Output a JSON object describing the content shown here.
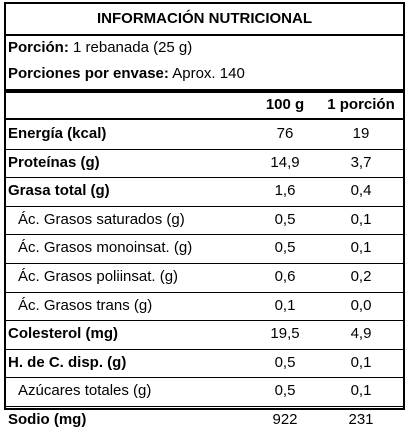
{
  "title": "INFORMACIÓN NUTRICIONAL",
  "serving": {
    "portion_label": "Porción:",
    "portion_value": "1 rebanada (25 g)",
    "per_package_label": "Porciones por envase:",
    "per_package_value": "Aprox. 140"
  },
  "columns": {
    "per_100g": "100 g",
    "per_portion": "1 porción"
  },
  "rows": [
    {
      "name": "Energía (kcal)",
      "per_100g": "76",
      "per_portion": "19",
      "style": "bold"
    },
    {
      "name": "Proteínas (g)",
      "per_100g": "14,9",
      "per_portion": "3,7",
      "style": "bold"
    },
    {
      "name": "Grasa total (g)",
      "per_100g": "1,6",
      "per_portion": "0,4",
      "style": "bold"
    },
    {
      "name": "Ác. Grasos saturados (g)",
      "per_100g": "0,5",
      "per_portion": "0,1",
      "style": "sub"
    },
    {
      "name": "Ác. Grasos monoinsat. (g)",
      "per_100g": "0,5",
      "per_portion": "0,1",
      "style": "sub"
    },
    {
      "name": "Ác. Grasos poliinsat. (g)",
      "per_100g": "0,6",
      "per_portion": "0,2",
      "style": "sub"
    },
    {
      "name": "Ác. Grasos trans (g)",
      "per_100g": "0,1",
      "per_portion": "0,0",
      "style": "sub"
    },
    {
      "name": "Colesterol (mg)",
      "per_100g": "19,5",
      "per_portion": "4,9",
      "style": "bold"
    },
    {
      "name": "H. de C. disp. (g)",
      "per_100g": "0,5",
      "per_portion": "0,1",
      "style": "bold"
    },
    {
      "name": "Azúcares totales (g)",
      "per_100g": "0,5",
      "per_portion": "0,1",
      "style": "sub"
    },
    {
      "name": "Sodio (mg)",
      "per_100g": "922",
      "per_portion": "231",
      "style": "bold"
    }
  ]
}
